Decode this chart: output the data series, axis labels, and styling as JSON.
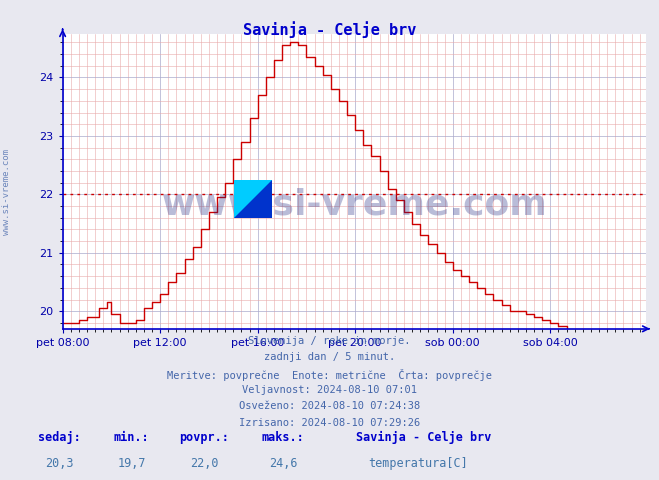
{
  "title": "Savinja - Celje brv",
  "title_color": "#0000cc",
  "bg_color": "#e8e8f0",
  "plot_bg_color": "#ffffff",
  "line_color": "#cc0000",
  "avg_line_color": "#cc0000",
  "avg_value": 22.0,
  "ylim": [
    19.7,
    24.75
  ],
  "yticks": [
    20,
    21,
    22,
    23,
    24
  ],
  "ylabel_color": "#0000aa",
  "grid_color_major": "#aaaacc",
  "grid_color_minor": "#e8aaaa",
  "axis_color": "#0000cc",
  "xtick_labels": [
    "pet 08:00",
    "pet 12:00",
    "pet 16:00",
    "pet 20:00",
    "sob 00:00",
    "sob 04:00"
  ],
  "xtick_positions": [
    0,
    48,
    96,
    144,
    192,
    240
  ],
  "total_points": 288,
  "watermark_text": "www.si-vreme.com",
  "watermark_color": "#1a237e",
  "watermark_alpha": 0.3,
  "side_text": "www.si-vreme.com",
  "info_lines": [
    "Slovenija / reke in morje.",
    "zadnji dan / 5 minut.",
    "Meritve: povprečne  Enote: metrične  Črta: povprečje",
    "Veljavnost: 2024-08-10 07:01",
    "Osveženo: 2024-08-10 07:24:38",
    "Izrisano: 2024-08-10 07:29:26"
  ],
  "info_color": "#4466aa",
  "bottom_labels": [
    "sedaj:",
    "min.:",
    "povpr.:",
    "maks.:"
  ],
  "bottom_values": [
    "20,3",
    "19,7",
    "22,0",
    "24,6"
  ],
  "bottom_label_color": "#0000cc",
  "bottom_value_color": "#4477aa",
  "legend_title": "Savinja - Celje brv",
  "legend_label": "temperatura[C]",
  "legend_color": "#cc0000"
}
